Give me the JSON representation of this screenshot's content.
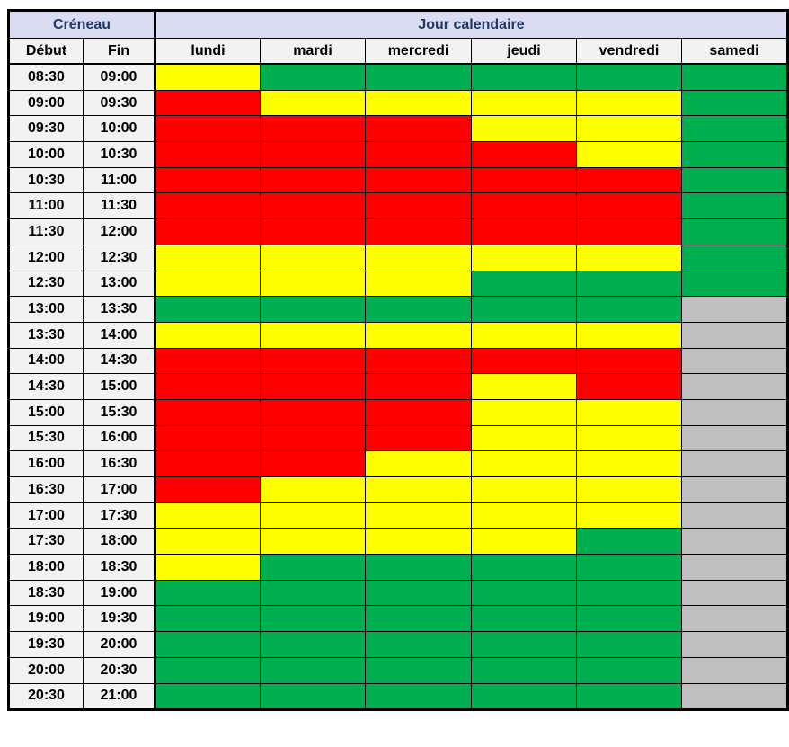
{
  "header": {
    "creneau": "Créneau",
    "jour_calendaire": "Jour calendaire",
    "debut": "Début",
    "fin": "Fin",
    "days": [
      "lundi",
      "mardi",
      "mercredi",
      "jeudi",
      "vendredi",
      "samedi"
    ]
  },
  "colors": {
    "R": "#FF0000",
    "Y": "#FFFF00",
    "G": "#00B050",
    "X": "#C0C0C0",
    "header_bg": "#DADDF2",
    "header_text": "#1F3864",
    "subheader_bg": "#F2F2F2",
    "time_bg": "#F2F2F2",
    "border": "#000000"
  },
  "chart_data": {
    "type": "heatmap",
    "title": "",
    "x_header_group": "Jour calendaire",
    "y_header_group": "Créneau",
    "columns": [
      "lundi",
      "mardi",
      "mercredi",
      "jeudi",
      "vendredi",
      "samedi"
    ],
    "cell_states": {
      "R": "red",
      "Y": "yellow",
      "G": "green",
      "X": "gray"
    },
    "rows": [
      {
        "debut": "08:30",
        "fin": "09:00",
        "cells": [
          "Y",
          "G",
          "G",
          "G",
          "G",
          "G"
        ]
      },
      {
        "debut": "09:00",
        "fin": "09:30",
        "cells": [
          "R",
          "Y",
          "Y",
          "Y",
          "Y",
          "G"
        ]
      },
      {
        "debut": "09:30",
        "fin": "10:00",
        "cells": [
          "R",
          "R",
          "R",
          "Y",
          "Y",
          "G"
        ]
      },
      {
        "debut": "10:00",
        "fin": "10:30",
        "cells": [
          "R",
          "R",
          "R",
          "R",
          "Y",
          "G"
        ]
      },
      {
        "debut": "10:30",
        "fin": "11:00",
        "cells": [
          "R",
          "R",
          "R",
          "R",
          "R",
          "G"
        ]
      },
      {
        "debut": "11:00",
        "fin": "11:30",
        "cells": [
          "R",
          "R",
          "R",
          "R",
          "R",
          "G"
        ]
      },
      {
        "debut": "11:30",
        "fin": "12:00",
        "cells": [
          "R",
          "R",
          "R",
          "R",
          "R",
          "G"
        ]
      },
      {
        "debut": "12:00",
        "fin": "12:30",
        "cells": [
          "Y",
          "Y",
          "Y",
          "Y",
          "Y",
          "G"
        ]
      },
      {
        "debut": "12:30",
        "fin": "13:00",
        "cells": [
          "Y",
          "Y",
          "Y",
          "G",
          "G",
          "G"
        ]
      },
      {
        "debut": "13:00",
        "fin": "13:30",
        "cells": [
          "G",
          "G",
          "G",
          "G",
          "G",
          "X"
        ]
      },
      {
        "debut": "13:30",
        "fin": "14:00",
        "cells": [
          "Y",
          "Y",
          "Y",
          "Y",
          "Y",
          "X"
        ]
      },
      {
        "debut": "14:00",
        "fin": "14:30",
        "cells": [
          "R",
          "R",
          "R",
          "R",
          "R",
          "X"
        ]
      },
      {
        "debut": "14:30",
        "fin": "15:00",
        "cells": [
          "R",
          "R",
          "R",
          "Y",
          "R",
          "X"
        ]
      },
      {
        "debut": "15:00",
        "fin": "15:30",
        "cells": [
          "R",
          "R",
          "R",
          "Y",
          "Y",
          "X"
        ]
      },
      {
        "debut": "15:30",
        "fin": "16:00",
        "cells": [
          "R",
          "R",
          "R",
          "Y",
          "Y",
          "X"
        ]
      },
      {
        "debut": "16:00",
        "fin": "16:30",
        "cells": [
          "R",
          "R",
          "Y",
          "Y",
          "Y",
          "X"
        ]
      },
      {
        "debut": "16:30",
        "fin": "17:00",
        "cells": [
          "R",
          "Y",
          "Y",
          "Y",
          "Y",
          "X"
        ]
      },
      {
        "debut": "17:00",
        "fin": "17:30",
        "cells": [
          "Y",
          "Y",
          "Y",
          "Y",
          "Y",
          "X"
        ]
      },
      {
        "debut": "17:30",
        "fin": "18:00",
        "cells": [
          "Y",
          "Y",
          "Y",
          "Y",
          "G",
          "X"
        ]
      },
      {
        "debut": "18:00",
        "fin": "18:30",
        "cells": [
          "Y",
          "G",
          "G",
          "G",
          "G",
          "X"
        ]
      },
      {
        "debut": "18:30",
        "fin": "19:00",
        "cells": [
          "G",
          "G",
          "G",
          "G",
          "G",
          "X"
        ]
      },
      {
        "debut": "19:00",
        "fin": "19:30",
        "cells": [
          "G",
          "G",
          "G",
          "G",
          "G",
          "X"
        ]
      },
      {
        "debut": "19:30",
        "fin": "20:00",
        "cells": [
          "G",
          "G",
          "G",
          "G",
          "G",
          "X"
        ]
      },
      {
        "debut": "20:00",
        "fin": "20:30",
        "cells": [
          "G",
          "G",
          "G",
          "G",
          "G",
          "X"
        ]
      },
      {
        "debut": "20:30",
        "fin": "21:00",
        "cells": [
          "G",
          "G",
          "G",
          "G",
          "G",
          "X"
        ]
      }
    ]
  }
}
